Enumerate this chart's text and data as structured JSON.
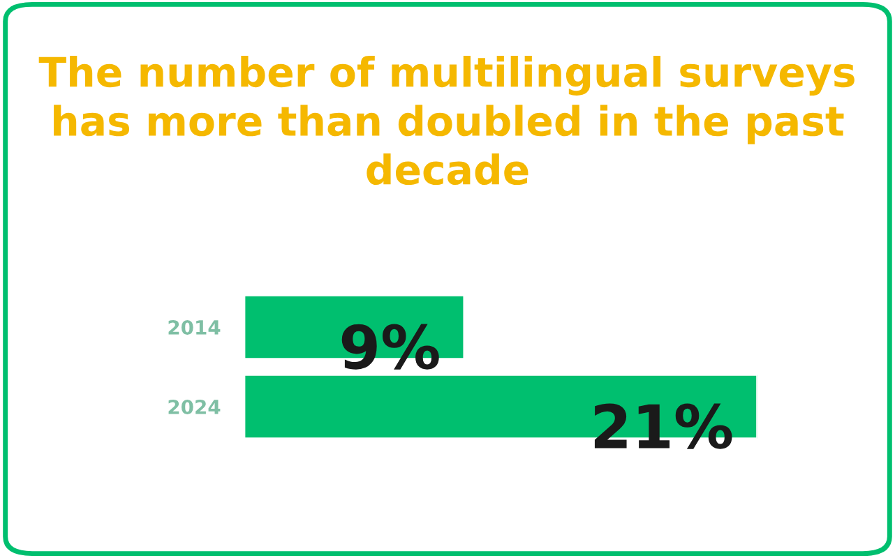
{
  "chart_data": {
    "type": "bar",
    "orientation": "horizontal",
    "title": "The number of multilingual surveys has more than doubled in the past decade",
    "categories": [
      "2014",
      "2024"
    ],
    "values": [
      9,
      21
    ],
    "value_labels": [
      "9%",
      "21%"
    ],
    "color": "#00bf6f",
    "grid": false,
    "legend": false
  }
}
